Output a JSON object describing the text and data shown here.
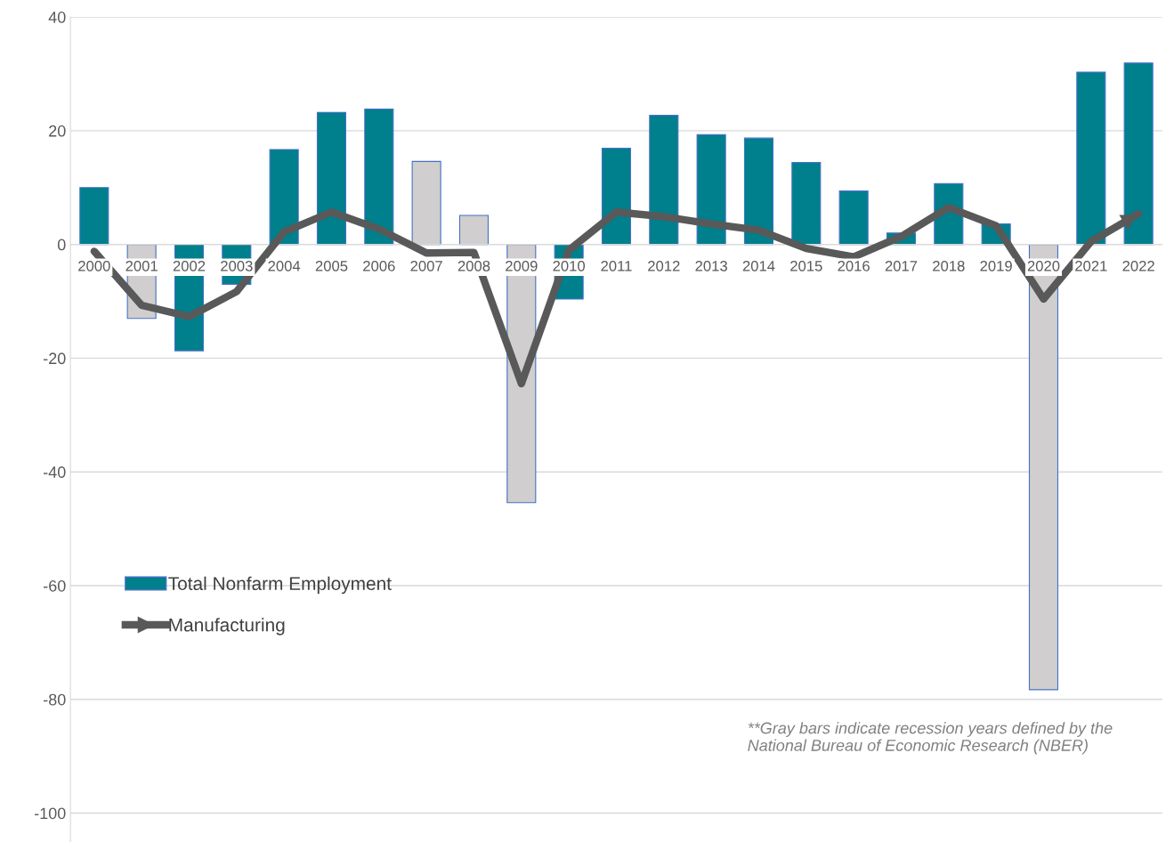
{
  "chart_data": {
    "type": "bar",
    "categories": [
      "2000",
      "2001",
      "2002",
      "2003",
      "2004",
      "2005",
      "2006",
      "2007",
      "2008",
      "2009",
      "2010",
      "2011",
      "2012",
      "2013",
      "2014",
      "2015",
      "2016",
      "2017",
      "2018",
      "2019",
      "2020",
      "2021",
      "2022"
    ],
    "series": [
      {
        "name": "Total Nonfarm Employment",
        "color": "#007f8c",
        "colors": [
          "#007f8c",
          "#d0cece",
          "#007f8c",
          "#007f8c",
          "#007f8c",
          "#007f8c",
          "#007f8c",
          "#d0cece",
          "#d0cece",
          "#d0cece",
          "#007f8c",
          "#007f8c",
          "#007f8c",
          "#007f8c",
          "#007f8c",
          "#007f8c",
          "#007f8c",
          "#007f8c",
          "#007f8c",
          "#007f8c",
          "#d0cece",
          "#007f8c",
          "#007f8c"
        ],
        "values": [
          10,
          -13,
          -18.7,
          -7,
          16.7,
          23.2,
          23.8,
          14.6,
          5.1,
          -45.4,
          -9.6,
          16.9,
          22.7,
          19.3,
          18.7,
          14.4,
          9.4,
          2,
          10.7,
          3.6,
          -78.3,
          30.3,
          31.9
        ]
      },
      {
        "name": "Manufacturing",
        "type": "line",
        "color": "#595959",
        "values": [
          -1.2,
          -10.7,
          -12.7,
          -8.3,
          2.2,
          5.7,
          2.7,
          -1.5,
          -1.4,
          -24.5,
          -1,
          5.7,
          4.9,
          3.6,
          2.5,
          -0.7,
          -2.2,
          1.4,
          6.5,
          3.3,
          -9.6,
          0.5,
          5.4
        ]
      }
    ],
    "ylim": [
      -105,
      40
    ],
    "yticks": [
      -100,
      -80,
      -60,
      -40,
      -20,
      0,
      20,
      40
    ],
    "grid": "y",
    "legend": "bottom left",
    "marker": "none",
    "line_style": "solid",
    "annotations": [
      "**Gray bars indicate recession years defined by the\nNational Bureau of Economic Research (NBER)"
    ]
  }
}
